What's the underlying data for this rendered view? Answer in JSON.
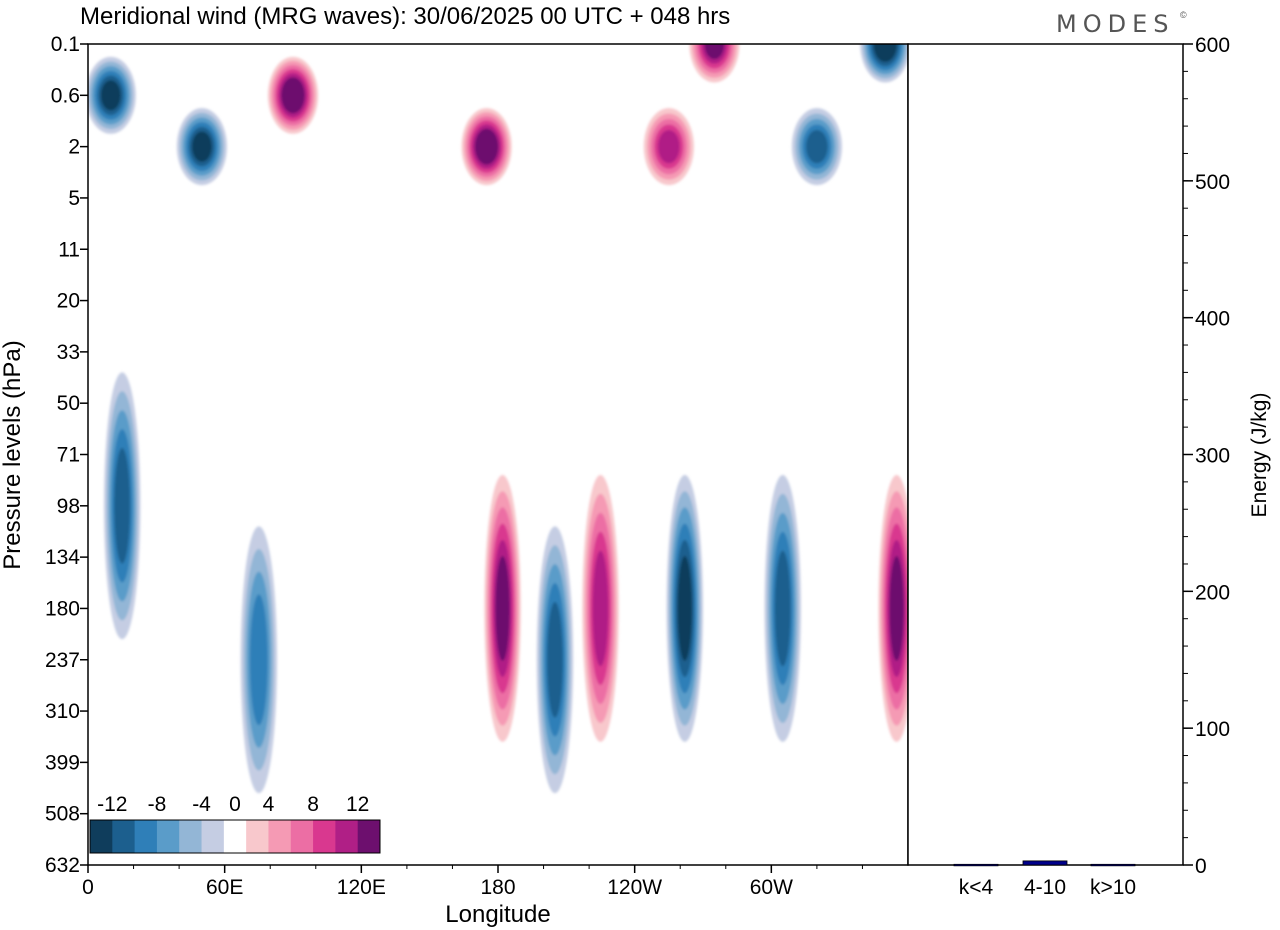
{
  "title": "Meridional wind (MRG waves):  30/06/2025  00 UTC  + 048 hrs",
  "brand": "MODES",
  "brand_mark": "©",
  "chart_data": [
    {
      "type": "heatmap",
      "title": "Meridional wind (MRG waves):  30/06/2025  00 UTC  + 048 hrs",
      "xlabel": "Longitude",
      "ylabel": "Pressure levels (hPa)",
      "x_ticks": [
        "0",
        "60E",
        "120E",
        "180",
        "120W",
        "60W"
      ],
      "x_tick_values": [
        0,
        60,
        120,
        180,
        240,
        300
      ],
      "xlim": [
        0,
        360
      ],
      "y_ticks": [
        "0.1",
        "0.6",
        "2",
        "5",
        "11",
        "20",
        "33",
        "50",
        "71",
        "98",
        "134",
        "180",
        "237",
        "310",
        "399",
        "508",
        "632"
      ],
      "y_order": "top-to-bottom",
      "colorbar": {
        "tick_labels": [
          "-12",
          "-8",
          "-4",
          "0",
          "4",
          "8",
          "12"
        ],
        "levels": [
          -14,
          -12,
          -10,
          -8,
          -6,
          -4,
          -2,
          2,
          4,
          6,
          8,
          10,
          12,
          14
        ],
        "colors": [
          "#0f3d5c",
          "#1c5f8e",
          "#2f7fb8",
          "#5a9cc9",
          "#93b6d6",
          "#c5cde3",
          "#ffffff",
          "#f8c8cc",
          "#f59ab4",
          "#ec6ea4",
          "#d9388f",
          "#b01f86",
          "#6d0f6e"
        ]
      },
      "features": [
        {
          "lon": 10,
          "level": "0.6",
          "value": -12
        },
        {
          "lon": 50,
          "level": "2",
          "value": -12
        },
        {
          "lon": 90,
          "level": "0.6",
          "value": 14
        },
        {
          "lon": 175,
          "level": "2",
          "value": 14
        },
        {
          "lon": 255,
          "level": "2",
          "value": 10
        },
        {
          "lon": 275,
          "level": "0.1",
          "value": 12
        },
        {
          "lon": 350,
          "level": "0.1",
          "value": -14
        },
        {
          "lon": 320,
          "level": "2",
          "value": -10
        },
        {
          "lon": 15,
          "level": "98",
          "value": -10
        },
        {
          "lon": 75,
          "level": "237",
          "value": -8
        },
        {
          "lon": 182,
          "level": "180",
          "value": 12
        },
        {
          "lon": 205,
          "level": "237",
          "value": -10
        },
        {
          "lon": 225,
          "level": "180",
          "value": 10
        },
        {
          "lon": 262,
          "level": "180",
          "value": -12
        },
        {
          "lon": 305,
          "level": "180",
          "value": -10
        },
        {
          "lon": 355,
          "level": "180",
          "value": 12
        }
      ]
    },
    {
      "type": "bar",
      "ylabel": "Energy (J/kg)",
      "categories": [
        "k<4",
        "4-10",
        "k>10"
      ],
      "values": [
        0.5,
        3,
        0.5
      ],
      "ylim": [
        0,
        600
      ],
      "y_ticks": [
        "0",
        "100",
        "200",
        "300",
        "400",
        "500",
        "600"
      ],
      "bar_color": "#00008b"
    }
  ]
}
